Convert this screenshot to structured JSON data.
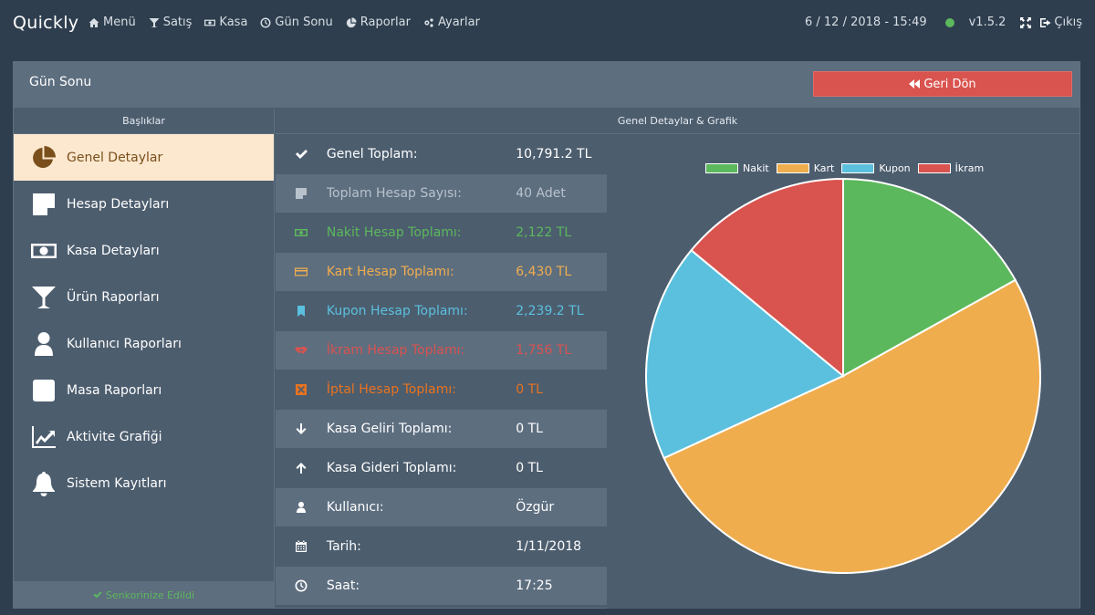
{
  "topbar": {
    "brand": "Quickly",
    "nav": [
      {
        "label": "Menü",
        "icon": "home-icon"
      },
      {
        "label": "Satış",
        "icon": "glass-icon"
      },
      {
        "label": "Kasa",
        "icon": "money-icon"
      },
      {
        "label": "Gün Sonu",
        "icon": "clock-icon"
      },
      {
        "label": "Raporlar",
        "icon": "pie-icon"
      },
      {
        "label": "Ayarlar",
        "icon": "cogs-icon"
      }
    ],
    "datetime": "6 / 12 / 2018 - 15:49",
    "version": "v1.5.2",
    "logout": "Çıkış",
    "status_color": "#5cb85c"
  },
  "panel": {
    "title": "Gün Sonu",
    "back_label": "Geri Dön"
  },
  "sidebar": {
    "header": "Başlıklar",
    "items": [
      {
        "label": "Genel Detaylar",
        "icon": "pie-chart-icon"
      },
      {
        "label": "Hesap Detayları",
        "icon": "sticky-note-icon"
      },
      {
        "label": "Kasa Detayları",
        "icon": "money-icon"
      },
      {
        "label": "Ürün Raporları",
        "icon": "cocktail-icon"
      },
      {
        "label": "Kullanıcı Raporları",
        "icon": "user-icon"
      },
      {
        "label": "Masa Raporları",
        "icon": "table-square-icon"
      },
      {
        "label": "Aktivite Grafiği",
        "icon": "line-chart-icon"
      },
      {
        "label": "Sistem Kayıtları",
        "icon": "bell-icon"
      }
    ],
    "sync_label": "Senkorinize Edildi"
  },
  "main": {
    "header": "Genel Detaylar & Grafik",
    "rows": [
      {
        "label": "Genel Toplam:",
        "value": "10,791.2 TL",
        "color": "#ffffff",
        "icon": "check-icon"
      },
      {
        "label": "Toplam Hesap Sayısı:",
        "value": "40 Adet",
        "color": "#b8c2cc",
        "icon": "sticky-note-icon"
      },
      {
        "label": "Nakit Hesap Toplamı:",
        "value": "2,122 TL",
        "color": "#5cb85c",
        "icon": "money-icon"
      },
      {
        "label": "Kart Hesap Toplamı:",
        "value": "6,430 TL",
        "color": "#f0ad4e",
        "icon": "credit-card-icon"
      },
      {
        "label": "Kupon Hesap Toplamı:",
        "value": "2,239.2 TL",
        "color": "#5bc0de",
        "icon": "bookmark-icon"
      },
      {
        "label": "İkram Hesap Toplamı:",
        "value": "1,756 TL",
        "color": "#d9534f",
        "icon": "handshake-icon"
      },
      {
        "label": "İptal Hesap Toplamı:",
        "value": "0 TL",
        "color": "#e8731f",
        "icon": "cancel-box-icon"
      },
      {
        "label": "Kasa Geliri Toplamı:",
        "value": "0 TL",
        "color": "#ffffff",
        "icon": "arrow-down-icon"
      },
      {
        "label": "Kasa Gideri Toplamı:",
        "value": "0 TL",
        "color": "#ffffff",
        "icon": "arrow-up-icon"
      },
      {
        "label": "Kullanıcı:",
        "value": "Özgür",
        "color": "#ffffff",
        "icon": "user-icon"
      },
      {
        "label": "Tarih:",
        "value": "1/11/2018",
        "color": "#ffffff",
        "icon": "calendar-icon"
      },
      {
        "label": "Saat:",
        "value": "17:25",
        "color": "#ffffff",
        "icon": "clock-icon"
      }
    ]
  },
  "chart_data": {
    "type": "pie",
    "categories": [
      "Nakit",
      "Kart",
      "Kupon",
      "İkram"
    ],
    "values": [
      2122,
      6430,
      2239.2,
      1756
    ],
    "colors": [
      "#5cb85c",
      "#f0ad4e",
      "#5bc0de",
      "#d9534f"
    ],
    "legend_position": "top"
  }
}
